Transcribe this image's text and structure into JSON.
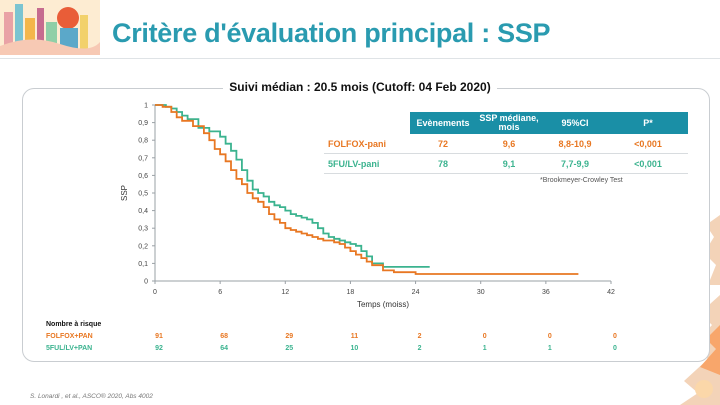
{
  "slide": {
    "title": "Critère d'évaluation principal : SSP",
    "citation": "S. Lonardi , et al., ASCO® 2020, Abs 4002"
  },
  "colors": {
    "folfox": "#e87722",
    "fu": "#3bb38f",
    "accent": "#2a9bb0",
    "header": "#1a8fa6"
  },
  "chart_data": {
    "type": "line",
    "title": "Suivi médian : 20.5 mois (Cutoff: 04 Feb 2020)",
    "xlabel": "Temps (moiss)",
    "ylabel": "SSP",
    "xlim": [
      0,
      42
    ],
    "ylim": [
      0,
      1
    ],
    "xticks": [
      "0",
      "6",
      "12",
      "18",
      "24",
      "30",
      "36",
      "42"
    ],
    "yticks": [
      "0",
      "0,1",
      "0,2",
      "0,3",
      "0,4",
      "0,5",
      "0,6",
      "0,7",
      "0,8",
      "0,9",
      "1"
    ],
    "grid": false,
    "series": [
      {
        "name": "FOLFOX-pani",
        "color": "#e87722",
        "x": [
          0,
          0.7,
          1.5,
          2,
          2.5,
          3.5,
          4.5,
          5,
          5.5,
          6,
          6.5,
          7,
          7.5,
          8,
          8.5,
          9,
          9.5,
          10,
          10.5,
          11,
          11.5,
          12,
          12.5,
          13,
          13.5,
          14,
          14.5,
          15,
          15.5,
          16,
          16.5,
          17,
          17.5,
          18,
          18.5,
          19,
          19.5,
          20,
          21,
          22,
          24,
          26,
          28,
          30,
          34,
          36,
          38,
          39
        ],
        "y": [
          1,
          0.99,
          0.96,
          0.93,
          0.91,
          0.88,
          0.84,
          0.8,
          0.75,
          0.72,
          0.68,
          0.63,
          0.58,
          0.55,
          0.5,
          0.47,
          0.45,
          0.42,
          0.38,
          0.35,
          0.33,
          0.3,
          0.29,
          0.28,
          0.27,
          0.26,
          0.25,
          0.24,
          0.23,
          0.23,
          0.22,
          0.21,
          0.19,
          0.17,
          0.15,
          0.13,
          0.11,
          0.09,
          0.06,
          0.05,
          0.04,
          0.04,
          0.04,
          0.04,
          0.04,
          0.04,
          0.04,
          0.04
        ]
      },
      {
        "name": "5FU/LV-pani",
        "color": "#3bb38f",
        "x": [
          0,
          1,
          1.5,
          2,
          2.5,
          3,
          4,
          5,
          6,
          6.5,
          7,
          7.5,
          8,
          8.5,
          9,
          9.5,
          10,
          10.5,
          11,
          11.5,
          12,
          12.5,
          13,
          13.5,
          14,
          14.5,
          15,
          15.5,
          16,
          16.5,
          17,
          17.5,
          18,
          18.5,
          19,
          19.5,
          20,
          21,
          22,
          23,
          24,
          25,
          25.3
        ],
        "y": [
          1,
          0.99,
          0.98,
          0.96,
          0.94,
          0.92,
          0.87,
          0.85,
          0.82,
          0.78,
          0.74,
          0.69,
          0.63,
          0.57,
          0.52,
          0.5,
          0.48,
          0.45,
          0.43,
          0.42,
          0.4,
          0.38,
          0.37,
          0.36,
          0.35,
          0.33,
          0.3,
          0.27,
          0.25,
          0.24,
          0.23,
          0.22,
          0.21,
          0.2,
          0.17,
          0.14,
          0.1,
          0.08,
          0.08,
          0.08,
          0.08,
          0.08,
          0.08
        ]
      }
    ],
    "table": {
      "headers": [
        "Evènements",
        "SSP médiane, mois",
        "95%CI",
        "P*"
      ],
      "rows": [
        {
          "label": "FOLFOX-pani",
          "values": [
            "72",
            "9,6",
            "8,8-10,9",
            "<0,001"
          ]
        },
        {
          "label": "5FU/LV-pani",
          "values": [
            "78",
            "9,1",
            "7,7-9,9",
            "<0,001"
          ]
        }
      ],
      "footnote": "*Brookmeyer-Crowley Test"
    },
    "at_risk": {
      "title": "Nombre à risque",
      "rows": [
        {
          "label": "FOLFOX+PAN",
          "values": [
            "91",
            "68",
            "29",
            "11",
            "2",
            "0",
            "0",
            "0"
          ]
        },
        {
          "label": "5FUL/LV+PAN",
          "values": [
            "92",
            "64",
            "25",
            "10",
            "2",
            "1",
            "1",
            "0"
          ]
        }
      ]
    }
  }
}
